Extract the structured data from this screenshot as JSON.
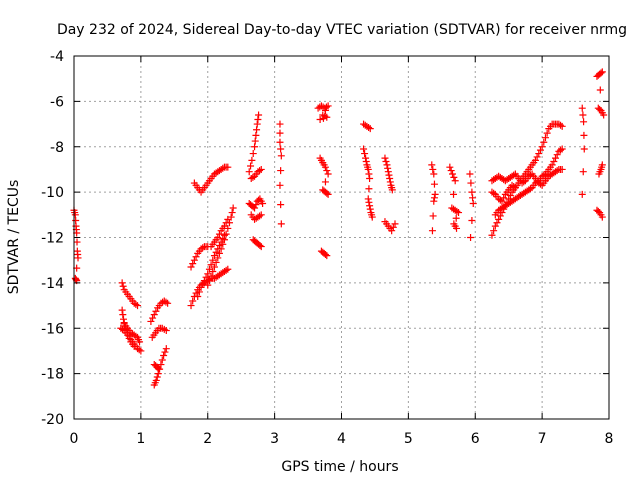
{
  "chart_data": {
    "type": "scatter",
    "title": "Day 232 of 2024, Sidereal Day-to-day VTEC variation (SDTVAR) for receiver nrmg",
    "xlabel": "GPS time / hours",
    "ylabel": "SDTVAR / TECUs",
    "xlim": [
      0,
      8
    ],
    "ylim": [
      -20,
      -4
    ],
    "xticks": [
      "0",
      "1",
      "2",
      "3",
      "4",
      "5",
      "6",
      "7",
      "8"
    ],
    "yticks": [
      "-4",
      "-6",
      "-8",
      "-10",
      "-12",
      "-14",
      "-16",
      "-18",
      "-20"
    ],
    "grid": true,
    "marker": "plus",
    "color": "#ff0000",
    "segments": [
      [
        [
          0.0,
          -10.8
        ],
        [
          0.02,
          -11.0
        ],
        [
          0.03,
          -11.5
        ],
        [
          0.04,
          -11.8
        ],
        [
          0.05,
          -12.6
        ],
        [
          0.06,
          -12.9
        ],
        [
          0.02,
          -13.8
        ],
        [
          0.04,
          -13.9
        ]
      ],
      [
        [
          0.72,
          -14.0
        ],
        [
          0.75,
          -14.3
        ],
        [
          0.8,
          -14.5
        ],
        [
          0.85,
          -14.7
        ],
        [
          0.9,
          -14.9
        ],
        [
          0.95,
          -15.0
        ]
      ],
      [
        [
          0.72,
          -15.2
        ],
        [
          0.74,
          -15.6
        ],
        [
          0.76,
          -15.9
        ],
        [
          0.8,
          -16.2
        ],
        [
          0.85,
          -16.5
        ],
        [
          0.9,
          -16.7
        ],
        [
          0.95,
          -16.9
        ],
        [
          1.0,
          -17.0
        ]
      ],
      [
        [
          0.75,
          -15.8
        ],
        [
          0.8,
          -16.0
        ],
        [
          0.85,
          -16.2
        ],
        [
          0.9,
          -16.3
        ],
        [
          0.95,
          -16.4
        ],
        [
          0.98,
          -16.6
        ]
      ],
      [
        [
          0.7,
          -16.0
        ],
        [
          0.75,
          -16.1
        ],
        [
          0.8,
          -16.3
        ],
        [
          0.85,
          -16.6
        ],
        [
          0.9,
          -16.8
        ]
      ],
      [
        [
          1.2,
          -18.5
        ],
        [
          1.23,
          -18.3
        ],
        [
          1.26,
          -18.0
        ],
        [
          1.3,
          -17.6
        ],
        [
          1.34,
          -17.2
        ],
        [
          1.38,
          -16.9
        ]
      ],
      [
        [
          1.2,
          -17.6
        ],
        [
          1.24,
          -17.7
        ],
        [
          1.27,
          -17.8
        ]
      ],
      [
        [
          1.15,
          -15.7
        ],
        [
          1.2,
          -15.4
        ],
        [
          1.25,
          -15.1
        ],
        [
          1.3,
          -14.9
        ],
        [
          1.35,
          -14.8
        ],
        [
          1.4,
          -14.9
        ]
      ],
      [
        [
          1.17,
          -16.4
        ],
        [
          1.22,
          -16.2
        ],
        [
          1.27,
          -16.0
        ],
        [
          1.32,
          -16.0
        ],
        [
          1.38,
          -16.1
        ]
      ],
      [
        [
          1.75,
          -15.0
        ],
        [
          1.8,
          -14.6
        ],
        [
          1.85,
          -14.3
        ],
        [
          1.9,
          -14.1
        ],
        [
          1.95,
          -14.0
        ],
        [
          2.0,
          -13.9
        ],
        [
          2.05,
          -13.8
        ],
        [
          2.1,
          -13.8
        ],
        [
          2.15,
          -13.7
        ],
        [
          2.2,
          -13.6
        ],
        [
          2.25,
          -13.5
        ],
        [
          2.3,
          -13.4
        ]
      ],
      [
        [
          1.75,
          -13.3
        ],
        [
          1.8,
          -13.0
        ],
        [
          1.85,
          -12.7
        ],
        [
          1.9,
          -12.5
        ],
        [
          1.95,
          -12.4
        ],
        [
          2.0,
          -12.4
        ]
      ],
      [
        [
          1.85,
          -14.6
        ],
        [
          1.9,
          -14.2
        ],
        [
          1.95,
          -13.9
        ],
        [
          2.0,
          -13.6
        ],
        [
          2.05,
          -13.2
        ],
        [
          2.1,
          -12.8
        ],
        [
          2.15,
          -12.5
        ],
        [
          2.2,
          -12.2
        ],
        [
          2.25,
          -11.9
        ]
      ],
      [
        [
          2.0,
          -14.1
        ],
        [
          2.05,
          -13.7
        ],
        [
          2.1,
          -13.3
        ],
        [
          2.15,
          -12.9
        ],
        [
          2.2,
          -12.5
        ],
        [
          2.25,
          -12.1
        ],
        [
          2.3,
          -11.6
        ],
        [
          2.35,
          -11.1
        ],
        [
          2.38,
          -10.7
        ]
      ],
      [
        [
          2.05,
          -12.4
        ],
        [
          2.1,
          -12.2
        ],
        [
          2.15,
          -12.0
        ],
        [
          2.2,
          -11.7
        ],
        [
          2.25,
          -11.5
        ],
        [
          2.3,
          -11.2
        ]
      ],
      [
        [
          1.8,
          -9.6
        ],
        [
          1.85,
          -9.8
        ],
        [
          1.9,
          -10.0
        ],
        [
          1.95,
          -9.8
        ],
        [
          2.0,
          -9.6
        ],
        [
          2.05,
          -9.4
        ],
        [
          2.1,
          -9.2
        ],
        [
          2.15,
          -9.1
        ],
        [
          2.2,
          -9.0
        ],
        [
          2.25,
          -8.9
        ],
        [
          2.3,
          -8.9
        ]
      ],
      [
        [
          2.62,
          -9.1
        ],
        [
          2.66,
          -8.6
        ],
        [
          2.7,
          -8.0
        ],
        [
          2.72,
          -7.5
        ],
        [
          2.74,
          -7.0
        ],
        [
          2.76,
          -6.6
        ]
      ],
      [
        [
          2.65,
          -9.4
        ],
        [
          2.7,
          -9.3
        ],
        [
          2.75,
          -9.1
        ],
        [
          2.8,
          -9.0
        ]
      ],
      [
        [
          2.62,
          -10.5
        ],
        [
          2.66,
          -10.6
        ],
        [
          2.7,
          -10.7
        ],
        [
          2.74,
          -10.4
        ],
        [
          2.78,
          -10.3
        ],
        [
          2.82,
          -10.5
        ]
      ],
      [
        [
          2.65,
          -11.0
        ],
        [
          2.7,
          -11.2
        ],
        [
          2.75,
          -11.1
        ],
        [
          2.8,
          -11.0
        ]
      ],
      [
        [
          2.68,
          -12.1
        ],
        [
          2.72,
          -12.2
        ],
        [
          2.76,
          -12.3
        ],
        [
          2.8,
          -12.4
        ]
      ],
      [
        [
          3.08,
          -7.0
        ],
        [
          3.08,
          -7.8
        ],
        [
          3.1,
          -8.4
        ],
        [
          3.08,
          -9.7
        ],
        [
          3.1,
          -11.4
        ]
      ],
      [
        [
          3.65,
          -6.3
        ],
        [
          3.7,
          -6.2
        ],
        [
          3.75,
          -6.3
        ],
        [
          3.8,
          -6.2
        ],
        [
          3.72,
          -6.6
        ],
        [
          3.78,
          -6.7
        ],
        [
          3.68,
          -6.8
        ]
      ],
      [
        [
          3.68,
          -8.5
        ],
        [
          3.72,
          -8.7
        ],
        [
          3.76,
          -8.9
        ],
        [
          3.8,
          -9.2
        ],
        [
          3.72,
          -9.9
        ],
        [
          3.76,
          -10.0
        ],
        [
          3.8,
          -10.1
        ]
      ],
      [
        [
          3.7,
          -12.6
        ],
        [
          3.74,
          -12.7
        ],
        [
          3.78,
          -12.8
        ]
      ],
      [
        [
          4.33,
          -7.0
        ],
        [
          4.38,
          -7.1
        ],
        [
          4.43,
          -7.2
        ]
      ],
      [
        [
          4.33,
          -8.1
        ],
        [
          4.36,
          -8.5
        ],
        [
          4.38,
          -8.8
        ],
        [
          4.4,
          -9.0
        ],
        [
          4.42,
          -9.4
        ],
        [
          4.4,
          -10.3
        ],
        [
          4.42,
          -10.6
        ],
        [
          4.44,
          -10.9
        ],
        [
          4.46,
          -11.1
        ]
      ],
      [
        [
          4.65,
          -8.5
        ],
        [
          4.68,
          -8.8
        ],
        [
          4.7,
          -9.1
        ],
        [
          4.72,
          -9.4
        ],
        [
          4.74,
          -9.7
        ],
        [
          4.76,
          -9.9
        ]
      ],
      [
        [
          4.65,
          -11.3
        ],
        [
          4.7,
          -11.5
        ],
        [
          4.75,
          -11.7
        ],
        [
          4.8,
          -11.4
        ]
      ],
      [
        [
          5.35,
          -8.8
        ],
        [
          5.38,
          -9.2
        ],
        [
          5.4,
          -10.1
        ],
        [
          5.38,
          -10.4
        ],
        [
          5.36,
          -11.7
        ]
      ],
      [
        [
          5.62,
          -8.9
        ],
        [
          5.66,
          -9.2
        ],
        [
          5.7,
          -9.5
        ],
        [
          5.65,
          -10.7
        ],
        [
          5.7,
          -10.8
        ],
        [
          5.75,
          -10.9
        ],
        [
          5.68,
          -11.4
        ],
        [
          5.72,
          -11.6
        ]
      ],
      [
        [
          5.92,
          -9.2
        ],
        [
          5.95,
          -10.0
        ],
        [
          5.97,
          -10.5
        ],
        [
          5.93,
          -12.0
        ]
      ],
      [
        [
          6.25,
          -11.9
        ],
        [
          6.3,
          -11.5
        ],
        [
          6.35,
          -11.2
        ],
        [
          6.4,
          -10.9
        ],
        [
          6.45,
          -10.6
        ],
        [
          6.5,
          -10.3
        ],
        [
          6.55,
          -10.0
        ],
        [
          6.6,
          -9.8
        ],
        [
          6.65,
          -9.6
        ],
        [
          6.7,
          -9.4
        ],
        [
          6.75,
          -9.2
        ],
        [
          6.8,
          -9.0
        ],
        [
          6.85,
          -8.8
        ],
        [
          6.9,
          -8.6
        ],
        [
          6.95,
          -8.3
        ],
        [
          7.0,
          -8.0
        ],
        [
          7.05,
          -7.6
        ],
        [
          7.1,
          -7.2
        ],
        [
          7.15,
          -7.0
        ],
        [
          7.2,
          -7.0
        ],
        [
          7.25,
          -7.0
        ],
        [
          7.3,
          -7.1
        ]
      ],
      [
        [
          6.3,
          -11.0
        ],
        [
          6.35,
          -10.8
        ],
        [
          6.4,
          -10.7
        ],
        [
          6.45,
          -10.6
        ],
        [
          6.5,
          -10.5
        ],
        [
          6.55,
          -10.4
        ],
        [
          6.6,
          -10.3
        ],
        [
          6.65,
          -10.2
        ],
        [
          6.7,
          -10.1
        ],
        [
          6.75,
          -10.0
        ],
        [
          6.8,
          -9.9
        ],
        [
          6.85,
          -9.8
        ],
        [
          6.9,
          -9.6
        ],
        [
          6.95,
          -9.5
        ],
        [
          7.0,
          -9.3
        ],
        [
          7.05,
          -9.2
        ],
        [
          7.1,
          -9.0
        ],
        [
          7.15,
          -8.8
        ],
        [
          7.2,
          -8.5
        ],
        [
          7.25,
          -8.2
        ],
        [
          7.3,
          -8.1
        ]
      ],
      [
        [
          6.25,
          -9.5
        ],
        [
          6.3,
          -9.4
        ],
        [
          6.35,
          -9.3
        ],
        [
          6.4,
          -9.4
        ],
        [
          6.45,
          -9.5
        ],
        [
          6.5,
          -9.4
        ],
        [
          6.55,
          -9.3
        ],
        [
          6.6,
          -9.2
        ],
        [
          6.65,
          -9.4
        ],
        [
          6.7,
          -9.6
        ],
        [
          6.75,
          -9.5
        ],
        [
          6.8,
          -9.3
        ],
        [
          6.85,
          -9.2
        ],
        [
          6.9,
          -9.4
        ],
        [
          6.95,
          -9.6
        ],
        [
          7.0,
          -9.7
        ],
        [
          7.05,
          -9.5
        ],
        [
          7.1,
          -9.3
        ],
        [
          7.15,
          -9.2
        ],
        [
          7.2,
          -9.1
        ],
        [
          7.25,
          -9.0
        ],
        [
          7.3,
          -9.0
        ]
      ],
      [
        [
          6.25,
          -10.0
        ],
        [
          6.3,
          -10.1
        ],
        [
          6.35,
          -10.3
        ],
        [
          6.4,
          -10.4
        ],
        [
          6.45,
          -10.1
        ],
        [
          6.5,
          -9.9
        ],
        [
          6.55,
          -9.7
        ],
        [
          6.6,
          -9.8
        ]
      ],
      [
        [
          7.6,
          -6.3
        ],
        [
          7.62,
          -6.9
        ],
        [
          7.63,
          -8.1
        ],
        [
          7.6,
          -10.1
        ]
      ],
      [
        [
          7.82,
          -4.9
        ],
        [
          7.86,
          -4.8
        ],
        [
          7.9,
          -4.7
        ],
        [
          7.84,
          -6.3
        ],
        [
          7.88,
          -6.4
        ],
        [
          7.92,
          -6.6
        ]
      ],
      [
        [
          7.85,
          -9.2
        ],
        [
          7.88,
          -9.0
        ],
        [
          7.9,
          -8.8
        ]
      ],
      [
        [
          7.82,
          -10.8
        ],
        [
          7.86,
          -10.9
        ],
        [
          7.9,
          -11.1
        ]
      ]
    ]
  }
}
